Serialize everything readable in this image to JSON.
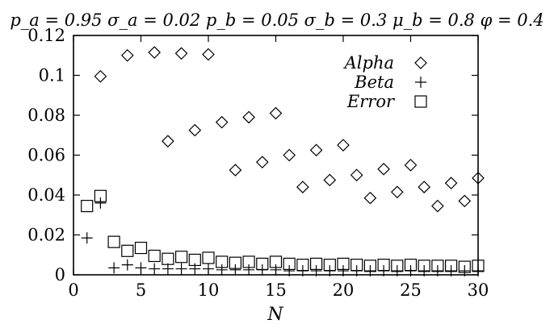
{
  "chart_data": {
    "type": "scatter",
    "title": "p_a = 0.95 σ_a = 0.02 p_b = 0.05 σ_b = 0.3 μ_b = 0.8 φ = 0.4",
    "xlabel": "N",
    "ylabel": "",
    "xlim": [
      0,
      30
    ],
    "ylim": [
      0,
      0.12
    ],
    "xticks": [
      "0",
      "5",
      "10",
      "15",
      "20",
      "25",
      "30"
    ],
    "yticks": [
      "0",
      "0.02",
      "0.04",
      "0.06",
      "0.08",
      "0.1",
      "0.12"
    ],
    "grid": false,
    "legend_position": "top-right",
    "series": [
      {
        "name": "Alpha",
        "marker": "diamond-icon",
        "points": [
          [
            2,
            0.0995
          ],
          [
            4,
            0.11
          ],
          [
            6,
            0.1115
          ],
          [
            8,
            0.111
          ],
          [
            10,
            0.1105
          ],
          [
            7,
            0.067
          ],
          [
            9,
            0.0725
          ],
          [
            11,
            0.0765
          ],
          [
            13,
            0.079
          ],
          [
            15,
            0.081
          ],
          [
            12,
            0.0525
          ],
          [
            14,
            0.0565
          ],
          [
            16,
            0.06
          ],
          [
            18,
            0.0625
          ],
          [
            20,
            0.065
          ],
          [
            17,
            0.044
          ],
          [
            19,
            0.0475
          ],
          [
            21,
            0.05
          ],
          [
            23,
            0.053
          ],
          [
            25,
            0.055
          ],
          [
            22,
            0.0385
          ],
          [
            24,
            0.0415
          ],
          [
            26,
            0.044
          ],
          [
            28,
            0.046
          ],
          [
            30,
            0.0485
          ],
          [
            27,
            0.0345
          ],
          [
            29,
            0.037
          ]
        ]
      },
      {
        "name": "Beta",
        "marker": "plus-icon",
        "points": [
          [
            1,
            0.0185
          ],
          [
            2,
            0.036
          ],
          [
            3,
            0.0035
          ],
          [
            4,
            0.005
          ],
          [
            5,
            0.0035
          ],
          [
            6,
            0.003
          ],
          [
            7,
            0.003
          ],
          [
            8,
            0.003
          ],
          [
            9,
            0.003
          ],
          [
            10,
            0.003
          ],
          [
            11,
            0.0025
          ],
          [
            12,
            0.0025
          ],
          [
            13,
            0.0025
          ],
          [
            14,
            0.0025
          ],
          [
            15,
            0.0025
          ],
          [
            16,
            0.002
          ],
          [
            17,
            0.002
          ],
          [
            18,
            0.002
          ],
          [
            19,
            0.002
          ],
          [
            20,
            0.002
          ],
          [
            21,
            0.002
          ],
          [
            22,
            0.002
          ],
          [
            23,
            0.002
          ],
          [
            24,
            0.002
          ],
          [
            25,
            0.002
          ],
          [
            26,
            0.002
          ],
          [
            27,
            0.002
          ],
          [
            28,
            0.002
          ],
          [
            29,
            0.002
          ],
          [
            30,
            0.002
          ]
        ]
      },
      {
        "name": "Error",
        "marker": "square-icon",
        "points": [
          [
            1,
            0.0345
          ],
          [
            2,
            0.0395
          ],
          [
            3,
            0.0165
          ],
          [
            4,
            0.012
          ],
          [
            5,
            0.0135
          ],
          [
            6,
            0.0095
          ],
          [
            7,
            0.008
          ],
          [
            8,
            0.009
          ],
          [
            9,
            0.0075
          ],
          [
            10,
            0.0085
          ],
          [
            11,
            0.0065
          ],
          [
            12,
            0.006
          ],
          [
            13,
            0.0065
          ],
          [
            14,
            0.0055
          ],
          [
            15,
            0.0065
          ],
          [
            16,
            0.0055
          ],
          [
            17,
            0.005
          ],
          [
            18,
            0.0055
          ],
          [
            19,
            0.005
          ],
          [
            20,
            0.0055
          ],
          [
            21,
            0.005
          ],
          [
            22,
            0.0045
          ],
          [
            23,
            0.005
          ],
          [
            24,
            0.0045
          ],
          [
            25,
            0.005
          ],
          [
            26,
            0.0045
          ],
          [
            27,
            0.0045
          ],
          [
            28,
            0.0045
          ],
          [
            29,
            0.004
          ],
          [
            30,
            0.0045
          ]
        ]
      }
    ]
  }
}
